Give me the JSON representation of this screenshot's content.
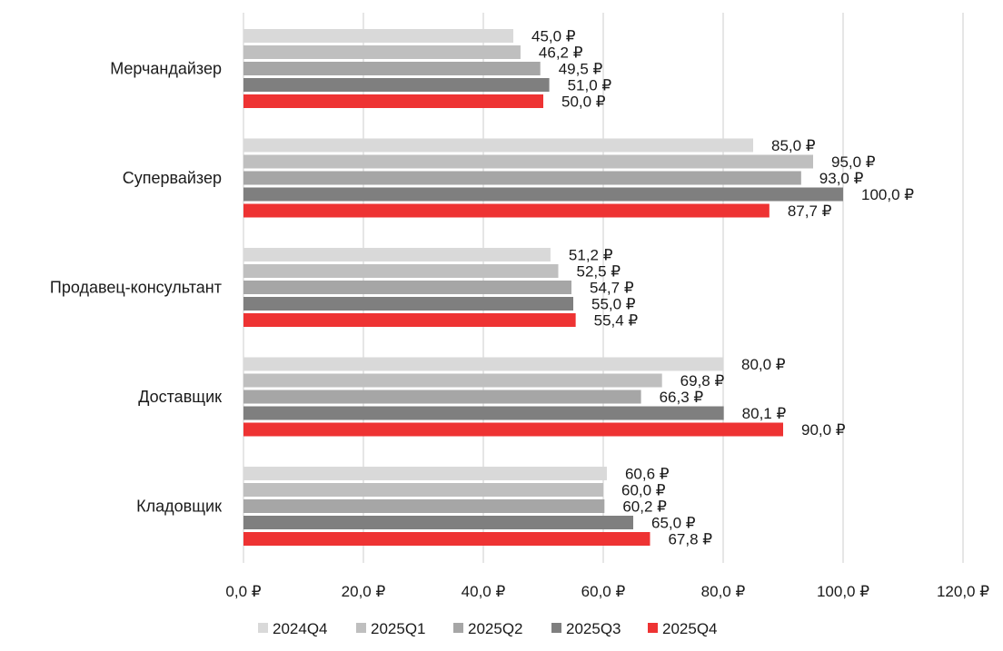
{
  "chart_data": {
    "type": "bar",
    "orientation": "horizontal",
    "title": "",
    "xlabel": "",
    "ylabel": "",
    "xlim": [
      0,
      120
    ],
    "x_ticks": [
      0,
      20,
      40,
      60,
      80,
      100,
      120
    ],
    "tick_labels": [
      "0,0 ₽",
      "20,0 ₽",
      "40,0 ₽",
      "60,0 ₽",
      "80,0 ₽",
      "100,0 ₽",
      "120,0 ₽"
    ],
    "grid": "vertical",
    "legend_position": "bottom",
    "categories": [
      "Мерчандайзер",
      "Супервайзер",
      "Продавец-консультант",
      "Доставщик",
      "Кладовщик"
    ],
    "series": [
      {
        "name": "2024Q4",
        "color": "#d9d9d9",
        "values": [
          45.0,
          85.0,
          51.2,
          80.0,
          60.6
        ],
        "labels": [
          "45,0 ₽",
          "85,0 ₽",
          "51,2 ₽",
          "80,0 ₽",
          "60,6 ₽"
        ]
      },
      {
        "name": "2025Q1",
        "color": "#bfbfbf",
        "values": [
          46.2,
          95.0,
          52.5,
          69.8,
          60.0
        ],
        "labels": [
          "46,2 ₽",
          "95,0 ₽",
          "52,5 ₽",
          "69,8 ₽",
          "60,0 ₽"
        ]
      },
      {
        "name": "2025Q2",
        "color": "#a6a6a6",
        "values": [
          49.5,
          93.0,
          54.7,
          66.3,
          60.2
        ],
        "labels": [
          "49,5 ₽",
          "93,0 ₽",
          "54,7 ₽",
          "66,3 ₽",
          "60,2 ₽"
        ]
      },
      {
        "name": "2025Q3",
        "color": "#7f7f7f",
        "values": [
          51.0,
          100.0,
          55.0,
          80.1,
          65.0
        ],
        "labels": [
          "51,0 ₽",
          "100,0 ₽",
          "55,0 ₽",
          "80,1 ₽",
          "65,0 ₽"
        ]
      },
      {
        "name": "2025Q4",
        "color": "#ee3333",
        "values": [
          50.0,
          87.7,
          55.4,
          90.0,
          67.8
        ],
        "labels": [
          "50,0 ₽",
          "87,7 ₽",
          "55,4 ₽",
          "90,0 ₽",
          "67,8 ₽"
        ]
      }
    ]
  }
}
